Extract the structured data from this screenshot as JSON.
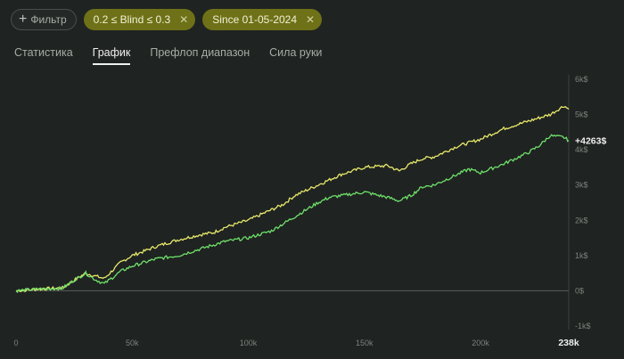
{
  "filters": {
    "add_label": "Фильтр",
    "chips": [
      {
        "label": "0.2 ≤ Blind ≤ 0.3"
      },
      {
        "label": "Since 01-05-2024"
      }
    ]
  },
  "tabs": [
    "Статистика",
    "График",
    "Префлоп диапазон",
    "Сила руки"
  ],
  "active_tab": "График",
  "chart_data": {
    "type": "line",
    "x_ticks": [
      "0",
      "50k",
      "100k",
      "150k",
      "200k",
      "238k"
    ],
    "y_ticks": [
      "6k$",
      "5k$",
      "4k$",
      "3k$",
      "2k$",
      "1k$",
      "0$",
      "-1k$"
    ],
    "end_label": "+4263$",
    "xlim": [
      0,
      238000
    ],
    "ylim": [
      -1000,
      6000
    ],
    "colors": {
      "series_a": "#e8e86a",
      "series_b": "#6fe06a",
      "zero_line": "#5a5f5b"
    },
    "series": [
      {
        "x": [
          0,
          10000,
          20000,
          25000,
          30000,
          34000,
          38000,
          45000,
          50000,
          55000,
          60000,
          70000,
          80000,
          85000,
          90000,
          100000,
          110000,
          115000,
          120000,
          130000,
          135000,
          140000,
          150000,
          160000,
          165000,
          170000,
          175000,
          180000,
          190000,
          195000,
          200000,
          210000,
          220000,
          225000,
          230000,
          236000,
          238000
        ],
        "y": [
          0,
          50,
          80,
          300,
          500,
          420,
          350,
          800,
          1000,
          1120,
          1250,
          1450,
          1600,
          1650,
          1800,
          2000,
          2300,
          2450,
          2700,
          3000,
          3150,
          3300,
          3500,
          3550,
          3400,
          3600,
          3750,
          3800,
          4100,
          4200,
          4300,
          4600,
          4800,
          4900,
          5000,
          5250,
          5150
        ]
      },
      {
        "x": [
          0,
          10000,
          20000,
          25000,
          30000,
          34000,
          38000,
          45000,
          50000,
          55000,
          60000,
          70000,
          80000,
          85000,
          90000,
          100000,
          110000,
          115000,
          120000,
          130000,
          135000,
          140000,
          150000,
          160000,
          165000,
          170000,
          175000,
          180000,
          190000,
          195000,
          200000,
          210000,
          220000,
          225000,
          230000,
          236000,
          238000
        ],
        "y": [
          0,
          50,
          70,
          300,
          500,
          320,
          200,
          550,
          700,
          800,
          900,
          1000,
          1200,
          1300,
          1400,
          1500,
          1700,
          1900,
          2100,
          2500,
          2650,
          2700,
          2800,
          2650,
          2550,
          2700,
          2950,
          3000,
          3300,
          3450,
          3350,
          3600,
          3900,
          4100,
          4400,
          4350,
          4263
        ]
      }
    ]
  }
}
